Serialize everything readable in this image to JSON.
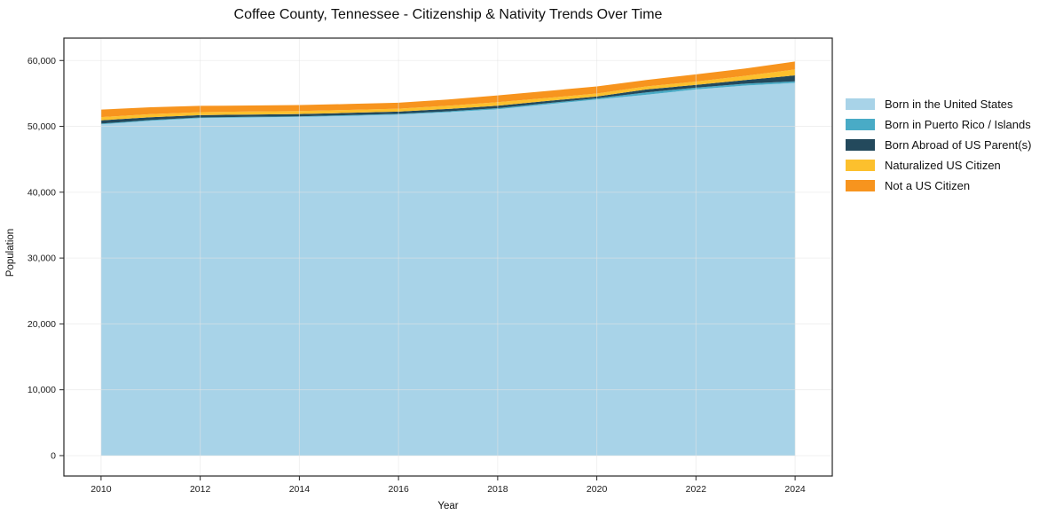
{
  "chart_data": {
    "type": "area",
    "stacked": true,
    "title": "Coffee County, Tennessee - Citizenship & Nativity Trends Over Time",
    "xlabel": "Year",
    "ylabel": "Population",
    "x": [
      2010,
      2011,
      2012,
      2013,
      2014,
      2015,
      2016,
      2017,
      2018,
      2019,
      2020,
      2021,
      2022,
      2023,
      2024
    ],
    "series": [
      {
        "name": "Born in the United States",
        "color": "#a8d3e8",
        "values": [
          50300,
          50850,
          51250,
          51350,
          51430,
          51600,
          51790,
          52150,
          52600,
          53350,
          54080,
          54800,
          55600,
          56200,
          56600
        ]
      },
      {
        "name": "Born in Puerto Rico / Islands",
        "color": "#49abc6",
        "values": [
          120,
          110,
          100,
          100,
          100,
          105,
          110,
          130,
          160,
          170,
          180,
          360,
          280,
          280,
          250
        ]
      },
      {
        "name": "Born Abroad of US Parent(s)",
        "color": "#23495c",
        "values": [
          500,
          420,
          350,
          345,
          350,
          345,
          340,
          360,
          380,
          330,
          270,
          440,
          420,
          550,
          900
        ]
      },
      {
        "name": "Naturalized US Citizen",
        "color": "#fcc02d",
        "values": [
          480,
          470,
          460,
          455,
          450,
          450,
          450,
          490,
          540,
          470,
          460,
          460,
          500,
          650,
          900
        ]
      },
      {
        "name": "Not a US Citizen",
        "color": "#f7941e",
        "values": [
          1150,
          1050,
          950,
          920,
          900,
          895,
          890,
          960,
          1030,
          1060,
          1070,
          980,
          1100,
          1120,
          1200
        ]
      }
    ],
    "xlim": [
      2009.25,
      2024.75
    ],
    "ylim": [
      -3100,
      63400
    ],
    "x_ticks": {
      "values": [
        2010,
        2012,
        2014,
        2016,
        2018,
        2020,
        2022,
        2024
      ],
      "labels": [
        "2010",
        "2012",
        "2014",
        "2016",
        "2018",
        "2020",
        "2022",
        "2024"
      ]
    },
    "y_ticks": {
      "values": [
        0,
        10000,
        20000,
        30000,
        40000,
        50000,
        60000
      ],
      "labels": [
        "0",
        "10,000",
        "20,000",
        "30,000",
        "40,000",
        "50,000",
        "60,000"
      ]
    },
    "grid": true,
    "legend_position": "outside-right"
  }
}
